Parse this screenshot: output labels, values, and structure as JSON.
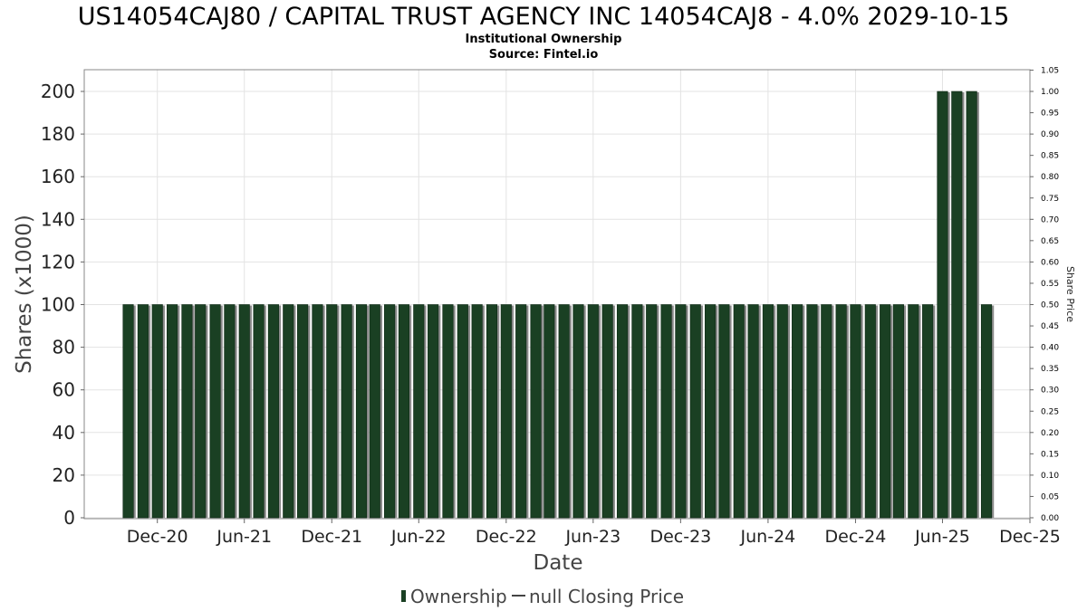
{
  "chart_data": {
    "type": "bar",
    "title": "US14054CAJ80 / CAPITAL TRUST AGENCY INC 14054CAJ8 - 4.0% 2029-10-15",
    "subtitle_line1": "Institutional Ownership",
    "subtitle_line2": "Source: Fintel.io",
    "xlabel": "Date",
    "ylabel": "Shares (x1000)",
    "ylabel_right": "Share Price",
    "ylim": [
      0,
      210
    ],
    "ylim_right": [
      0,
      1.05
    ],
    "y_ticks": [
      0,
      20,
      40,
      60,
      80,
      100,
      120,
      140,
      160,
      180,
      200
    ],
    "y_ticks_right": [
      "0.00",
      "0.05",
      "0.10",
      "0.15",
      "0.20",
      "0.25",
      "0.30",
      "0.35",
      "0.40",
      "0.45",
      "0.50",
      "0.55",
      "0.60",
      "0.65",
      "0.70",
      "0.75",
      "0.80",
      "0.85",
      "0.90",
      "0.95",
      "1.00",
      "1.05"
    ],
    "x_range": [
      "2020-07-01",
      "2025-12-01"
    ],
    "x_ticks": [
      {
        "label": "Dec-20",
        "date": "2020-12-01"
      },
      {
        "label": "Jun-21",
        "date": "2021-06-01"
      },
      {
        "label": "Dec-21",
        "date": "2021-12-01"
      },
      {
        "label": "Jun-22",
        "date": "2022-06-01"
      },
      {
        "label": "Dec-22",
        "date": "2022-12-01"
      },
      {
        "label": "Jun-23",
        "date": "2023-06-01"
      },
      {
        "label": "Dec-23",
        "date": "2023-12-01"
      },
      {
        "label": "Jun-24",
        "date": "2024-06-01"
      },
      {
        "label": "Dec-24",
        "date": "2024-12-01"
      },
      {
        "label": "Jun-25",
        "date": "2025-06-01"
      },
      {
        "label": "Dec-25",
        "date": "2025-12-01"
      }
    ],
    "series": [
      {
        "name": "Ownership",
        "color": "#1a4023",
        "bar_start": "2020-10-01",
        "bar_count": 60,
        "bar_step": "monthly",
        "values": [
          100,
          100,
          100,
          100,
          100,
          100,
          100,
          100,
          100,
          100,
          100,
          100,
          100,
          100,
          100,
          100,
          100,
          100,
          100,
          100,
          100,
          100,
          100,
          100,
          100,
          100,
          100,
          100,
          100,
          100,
          100,
          100,
          100,
          100,
          100,
          100,
          100,
          100,
          100,
          100,
          100,
          100,
          100,
          100,
          100,
          100,
          100,
          100,
          100,
          100,
          100,
          100,
          100,
          100,
          100,
          100,
          200,
          200,
          200,
          100
        ]
      }
    ],
    "legend": {
      "placement": "bottom",
      "ownership_label": "Ownership",
      "price_label": "null Closing Price"
    },
    "grid": true
  }
}
